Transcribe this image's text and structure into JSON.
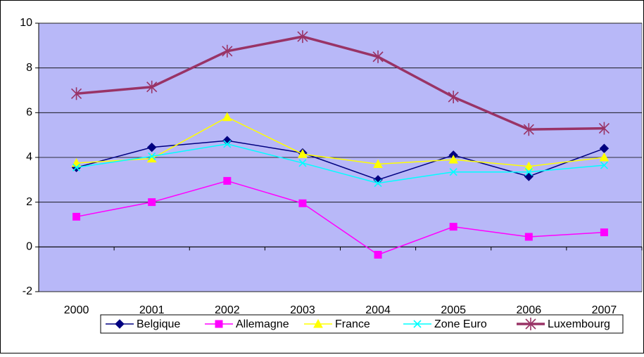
{
  "chart_data": {
    "type": "line",
    "categories": [
      "2000",
      "2001",
      "2002",
      "2003",
      "2004",
      "2005",
      "2006",
      "2007"
    ],
    "series": [
      {
        "name": "Belgique",
        "color": "#000080",
        "marker": "diamond",
        "line_width": 1.5,
        "values": [
          3.55,
          4.45,
          4.75,
          4.2,
          3.0,
          4.1,
          3.15,
          4.4
        ]
      },
      {
        "name": "Allemagne",
        "color": "#ff00ff",
        "marker": "square",
        "line_width": 1.5,
        "values": [
          1.35,
          2.0,
          2.95,
          1.95,
          -0.35,
          0.9,
          0.45,
          0.65
        ]
      },
      {
        "name": "France",
        "color": "#ffff00",
        "marker": "triangle",
        "line_width": 1.5,
        "values": [
          3.75,
          3.95,
          5.8,
          4.15,
          3.7,
          3.9,
          3.6,
          4.0
        ]
      },
      {
        "name": "Zone Euro",
        "color": "#00ffff",
        "marker": "x",
        "line_width": 1.5,
        "values": [
          3.55,
          4.05,
          4.6,
          3.75,
          2.85,
          3.35,
          3.35,
          3.65
        ]
      },
      {
        "name": "Luxembourg",
        "color": "#993366",
        "marker": "star",
        "line_width": 3.5,
        "values": [
          6.85,
          7.15,
          8.75,
          9.4,
          8.5,
          6.7,
          5.25,
          5.3
        ]
      }
    ],
    "ylim": [
      -2,
      10
    ],
    "yticks": [
      -2,
      0,
      2,
      4,
      6,
      8,
      10
    ],
    "grid": true,
    "legend": "bottom"
  }
}
